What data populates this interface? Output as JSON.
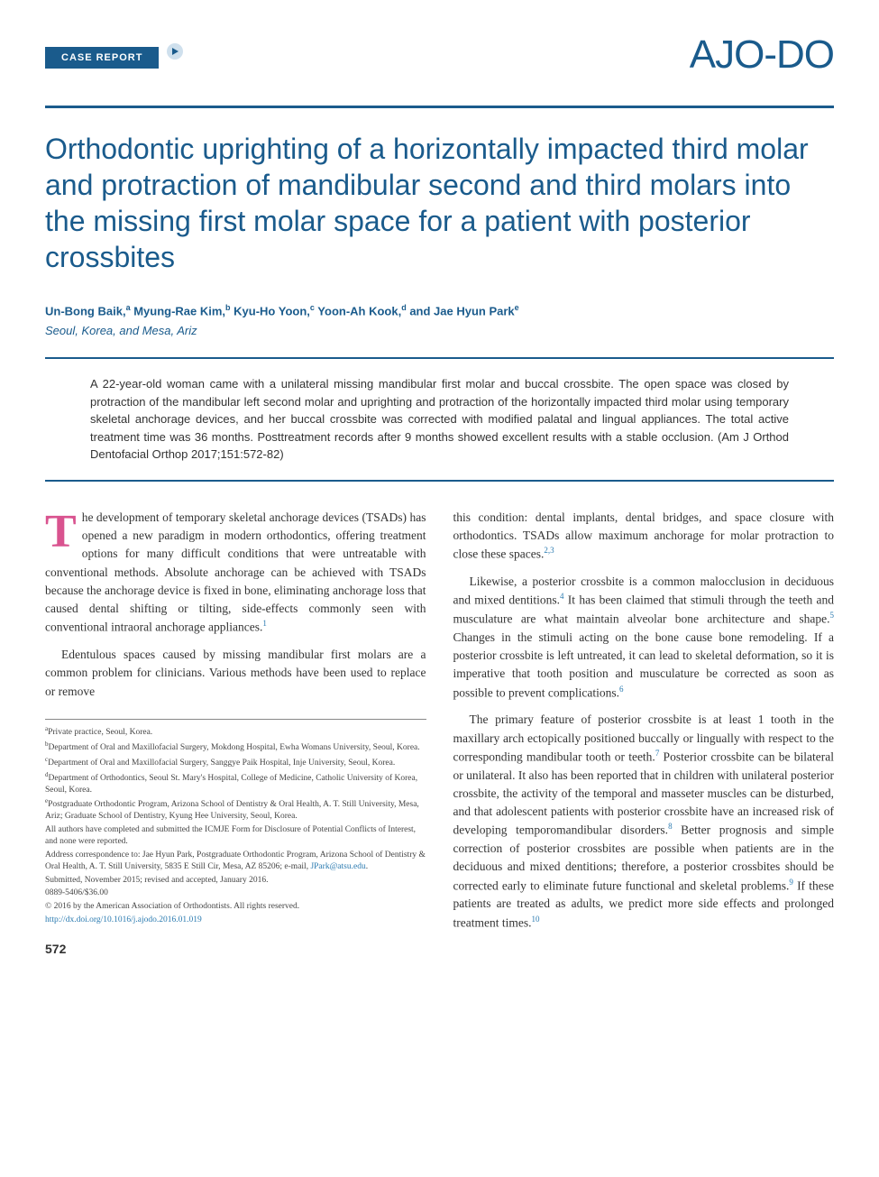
{
  "header": {
    "section_label": "CASE REPORT",
    "journal_logo": "AJO-DO"
  },
  "title": "Orthodontic uprighting of a horizontally impacted third molar and protraction of mandibular second and third molars into the missing first molar space for a patient with posterior crossbites",
  "authors_html": "Un-Bong Baik,<sup>a</sup> Myung-Rae Kim,<sup>b</sup> Kyu-Ho Yoon,<sup>c</sup> Yoon-Ah Kook,<sup>d</sup> and Jae Hyun Park<sup>e</sup>",
  "affiliation_location": "Seoul, Korea, and Mesa, Ariz",
  "abstract": "A 22-year-old woman came with a unilateral missing mandibular first molar and buccal crossbite. The open space was closed by protraction of the mandibular left second molar and uprighting and protraction of the horizontally impacted third molar using temporary skeletal anchorage devices, and her buccal crossbite was corrected with modified palatal and lingual appliances. The total active treatment time was 36 months. Posttreatment records after 9 months showed excellent results with a stable occlusion. (Am J Orthod Dentofacial Orthop 2017;151:572-82)",
  "body": {
    "col1": {
      "p1_dropcap": "T",
      "p1": "he development of temporary skeletal anchorage devices (TSADs) has opened a new paradigm in modern orthodontics, offering treatment options for many difficult conditions that were untreatable with conventional methods. Absolute anchorage can be achieved with TSADs because the anchorage device is fixed in bone, eliminating anchorage loss that caused dental shifting or tilting, side-effects commonly seen with conventional intraoral anchorage appliances.",
      "p1_ref": "1",
      "p2": "Edentulous spaces caused by missing mandibular first molars are a common problem for clinicians. Various methods have been used to replace or remove"
    },
    "col2": {
      "p1": "this condition: dental implants, dental bridges, and space closure with orthodontics. TSADs allow maximum anchorage for molar protraction to close these spaces.",
      "p1_ref": "2,3",
      "p2a": "Likewise, a posterior crossbite is a common malocclusion in deciduous and mixed dentitions.",
      "p2_ref1": "4",
      "p2b": " It has been claimed that stimuli through the teeth and musculature are what maintain alveolar bone architecture and shape.",
      "p2_ref2": "5",
      "p2c": " Changes in the stimuli acting on the bone cause bone remodeling. If a posterior crossbite is left untreated, it can lead to skeletal deformation, so it is imperative that tooth position and musculature be corrected as soon as possible to prevent complications.",
      "p2_ref3": "6",
      "p3a": "The primary feature of posterior crossbite is at least 1 tooth in the maxillary arch ectopically positioned buccally or lingually with respect to the corresponding mandibular tooth or teeth.",
      "p3_ref1": "7",
      "p3b": " Posterior crossbite can be bilateral or unilateral. It also has been reported that in children with unilateral posterior crossbite, the activity of the temporal and masseter muscles can be disturbed, and that adolescent patients with posterior crossbite have an increased risk of developing temporomandibular disorders.",
      "p3_ref2": "8",
      "p3c": " Better prognosis and simple correction of posterior crossbites are possible when patients are in the deciduous and mixed dentitions; therefore, a posterior crossbites should be corrected early to eliminate future functional and skeletal problems.",
      "p3_ref3": "9",
      "p3d": " If these patients are treated as adults, we predict more side effects and prolonged treatment times.",
      "p3_ref4": "10"
    }
  },
  "footnotes": {
    "a": "Private practice, Seoul, Korea.",
    "b": "Department of Oral and Maxillofacial Surgery, Mokdong Hospital, Ewha Womans University, Seoul, Korea.",
    "c": "Department of Oral and Maxillofacial Surgery, Sanggye Paik Hospital, Inje University, Seoul, Korea.",
    "d": "Department of Orthodontics, Seoul St. Mary's Hospital, College of Medicine, Catholic University of Korea, Seoul, Korea.",
    "e": "Postgraduate Orthodontic Program, Arizona School of Dentistry & Oral Health, A. T. Still University, Mesa, Ariz; Graduate School of Dentistry, Kyung Hee University, Seoul, Korea.",
    "disclosure": "All authors have completed and submitted the ICMJE Form for Disclosure of Potential Conflicts of Interest, and none were reported.",
    "correspondence": "Address correspondence to: Jae Hyun Park, Postgraduate Orthodontic Program, Arizona School of Dentistry & Oral Health, A. T. Still University, 5835 E Still Cir, Mesa, AZ 85206; e-mail, ",
    "email": "JPark@atsu.edu",
    "submitted": "Submitted, November 2015; revised and accepted, January 2016.",
    "issn": "0889-5406/$36.00",
    "copyright": "© 2016 by the American Association of Orthodontists. All rights reserved.",
    "doi": "http://dx.doi.org/10.1016/j.ajodo.2016.01.019"
  },
  "page_number": "572",
  "colors": {
    "primary_blue": "#1a5b8c",
    "link_blue": "#2a7ab0",
    "dropcap_pink": "#d9538f",
    "body_text": "#333333",
    "footnote_text": "#444444",
    "background": "#ffffff",
    "rule_gray": "#888888"
  },
  "typography": {
    "title_fontsize": 32,
    "author_fontsize": 13,
    "abstract_fontsize": 13,
    "body_fontsize": 13.5,
    "footnote_fontsize": 9.5,
    "logo_fontsize": 44,
    "dropcap_fontsize": 52
  }
}
